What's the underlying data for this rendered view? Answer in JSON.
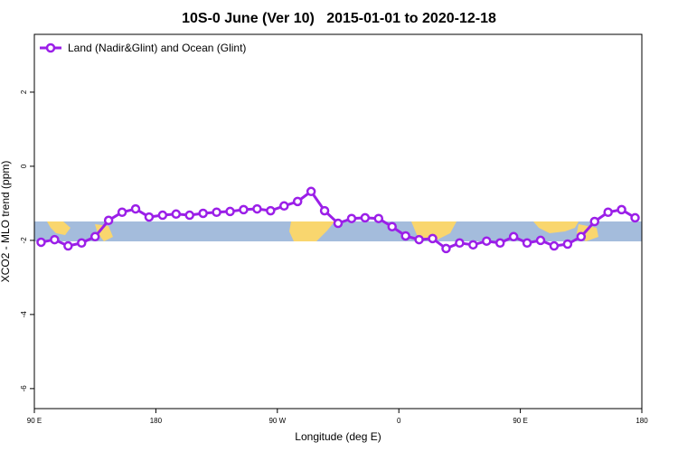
{
  "chart_data": {
    "type": "line",
    "title": "10S-0 June (Ver 10)   2015-01-01 to 2020-12-18",
    "x_label": "Longitude (deg E)",
    "y_label": "XCO2 - MLO trend (ppm)",
    "x": [
      95,
      105,
      115,
      125,
      135,
      145,
      155,
      165,
      175,
      185,
      195,
      205,
      215,
      225,
      235,
      245,
      255,
      265,
      275,
      285,
      295,
      305,
      315,
      325,
      335,
      345,
      355,
      365,
      375,
      385,
      395,
      405,
      415,
      425,
      435,
      445,
      455,
      465,
      475,
      485,
      495,
      505,
      515,
      525,
      535
    ],
    "series": [
      {
        "name": "Land (Nadir&Glint) and Ocean (Glint)",
        "color": "#9b1fe8",
        "values": [
          -2.05,
          -1.98,
          -2.15,
          -2.07,
          -1.9,
          -1.46,
          -1.24,
          -1.15,
          -1.37,
          -1.32,
          -1.29,
          -1.32,
          -1.27,
          -1.24,
          -1.22,
          -1.17,
          -1.15,
          -1.2,
          -1.07,
          -0.95,
          -0.68,
          -1.2,
          -1.54,
          -1.41,
          -1.39,
          -1.41,
          -1.63,
          -1.88,
          -1.98,
          -1.95,
          -2.22,
          -2.07,
          -2.12,
          -2.02,
          -2.07,
          -1.9,
          -2.07,
          -2.0,
          -2.15,
          -2.1,
          -1.9,
          -1.49,
          -1.24,
          -1.17,
          -1.39
        ]
      }
    ],
    "xlim": [
      90,
      540
    ],
    "xticks": [
      {
        "value": 90,
        "label": "90 E"
      },
      {
        "value": 180,
        "label": "180"
      },
      {
        "value": 270,
        "label": "90 W"
      },
      {
        "value": 360,
        "label": "0"
      },
      {
        "value": 450,
        "label": "90 E"
      },
      {
        "value": 540,
        "label": "180"
      }
    ],
    "ylim": [
      -6.54,
      3.56
    ],
    "yticks": [
      -6,
      -4,
      -2,
      0,
      2
    ],
    "legend": "top-left"
  }
}
